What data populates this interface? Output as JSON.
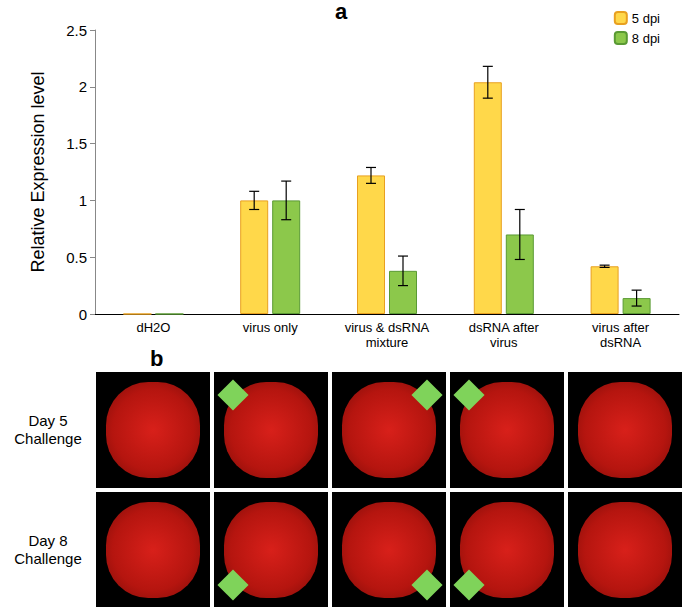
{
  "panel_labels": [
    "a",
    "b"
  ],
  "chart_data": {
    "type": "bar",
    "categories": [
      "dH2O",
      "virus only",
      "virus & dsRNA\nmixture",
      "dsRNA after\nvirus",
      "virus after\ndsRNA"
    ],
    "series": [
      {
        "name": "5 dpi",
        "color": "#ffd84a",
        "values": [
          0,
          1.0,
          1.22,
          2.04,
          0.42
        ],
        "errors": [
          0,
          0.08,
          0.07,
          0.14,
          0.01
        ]
      },
      {
        "name": "8 dpi",
        "color": "#8cc84b",
        "values": [
          0,
          1.0,
          0.38,
          0.7,
          0.14
        ],
        "errors": [
          0,
          0.17,
          0.13,
          0.22,
          0.07
        ]
      }
    ],
    "y_label": "Relative Expression level",
    "ylim": [
      0,
      2.5
    ],
    "yticks": [
      0,
      0.5,
      1,
      1.5,
      2,
      2.5
    ],
    "legend": "upper right",
    "grid": false
  },
  "image_grid": {
    "rows": [
      "Day 5\nChallenge",
      "Day 8\nChallenge"
    ],
    "columns": 5
  }
}
